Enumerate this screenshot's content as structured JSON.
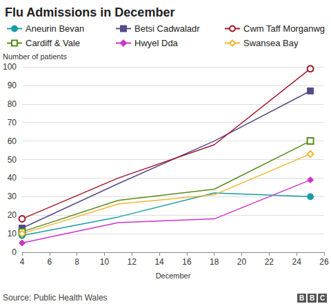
{
  "chart_data": {
    "type": "line",
    "title": "Flu Admissions in December",
    "y_label": "Number of patients",
    "x_label": "December",
    "source": "Source: Public Health Wales",
    "logo": "BBC",
    "x": [
      4,
      11,
      18,
      25
    ],
    "xlim": [
      4,
      26
    ],
    "xticks": [
      4,
      6,
      8,
      10,
      12,
      14,
      16,
      18,
      20,
      22,
      24,
      26
    ],
    "ylim": [
      0,
      100
    ],
    "yticks": [
      0,
      10,
      20,
      30,
      40,
      50,
      60,
      70,
      80,
      90,
      100
    ],
    "grid": true,
    "legend": "top",
    "series": [
      {
        "name": "Aneurin Bevan",
        "color": "#1a9ba5",
        "marker": "circle",
        "values": [
          9,
          19,
          32,
          30
        ]
      },
      {
        "name": "Betsi Cadwaladr",
        "color": "#554a8a",
        "marker": "square",
        "values": [
          13,
          37,
          60,
          87
        ]
      },
      {
        "name": "Cwm Taff Morganwg",
        "color": "#a3152a",
        "marker": "circle-open",
        "values": [
          18,
          40,
          58,
          99
        ]
      },
      {
        "name": "Cardiff & Vale",
        "color": "#5a8a1a",
        "marker": "square-open",
        "values": [
          11,
          28,
          34,
          60
        ]
      },
      {
        "name": "Hwyel Dda",
        "color": "#cc33cc",
        "marker": "diamond",
        "values": [
          5,
          16,
          18,
          39
        ]
      },
      {
        "name": "Swansea Bay",
        "color": "#f2b530",
        "marker": "diamond-open",
        "values": [
          10,
          26,
          31,
          53
        ]
      }
    ]
  }
}
